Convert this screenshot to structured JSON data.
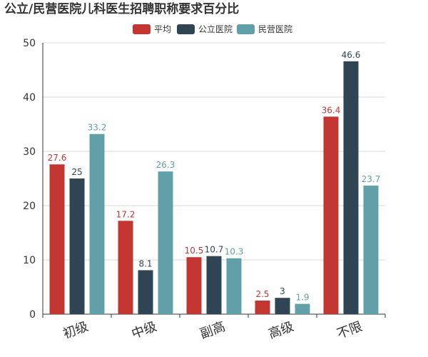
{
  "chart_data": {
    "type": "bar",
    "title": "公立/民营医院儿科医生招聘职称要求百分比",
    "categories": [
      "初级",
      "中级",
      "副高",
      "高级",
      "不限"
    ],
    "series": [
      {
        "name": "平均",
        "color": "#c23531",
        "values": [
          27.6,
          17.2,
          10.5,
          2.5,
          36.4
        ]
      },
      {
        "name": "公立医院",
        "color": "#2f4554",
        "values": [
          25,
          8.1,
          10.7,
          3,
          46.6
        ]
      },
      {
        "name": "民营医院",
        "color": "#61a0a8",
        "values": [
          33.2,
          26.3,
          10.3,
          1.9,
          23.7
        ]
      }
    ],
    "ylim": [
      0,
      50
    ],
    "yticks": [
      0,
      10,
      20,
      30,
      40,
      50
    ],
    "xlabel": "",
    "ylabel": "",
    "legend_position": "top-center",
    "grid": true,
    "x_tick_rotation_deg": -20
  }
}
